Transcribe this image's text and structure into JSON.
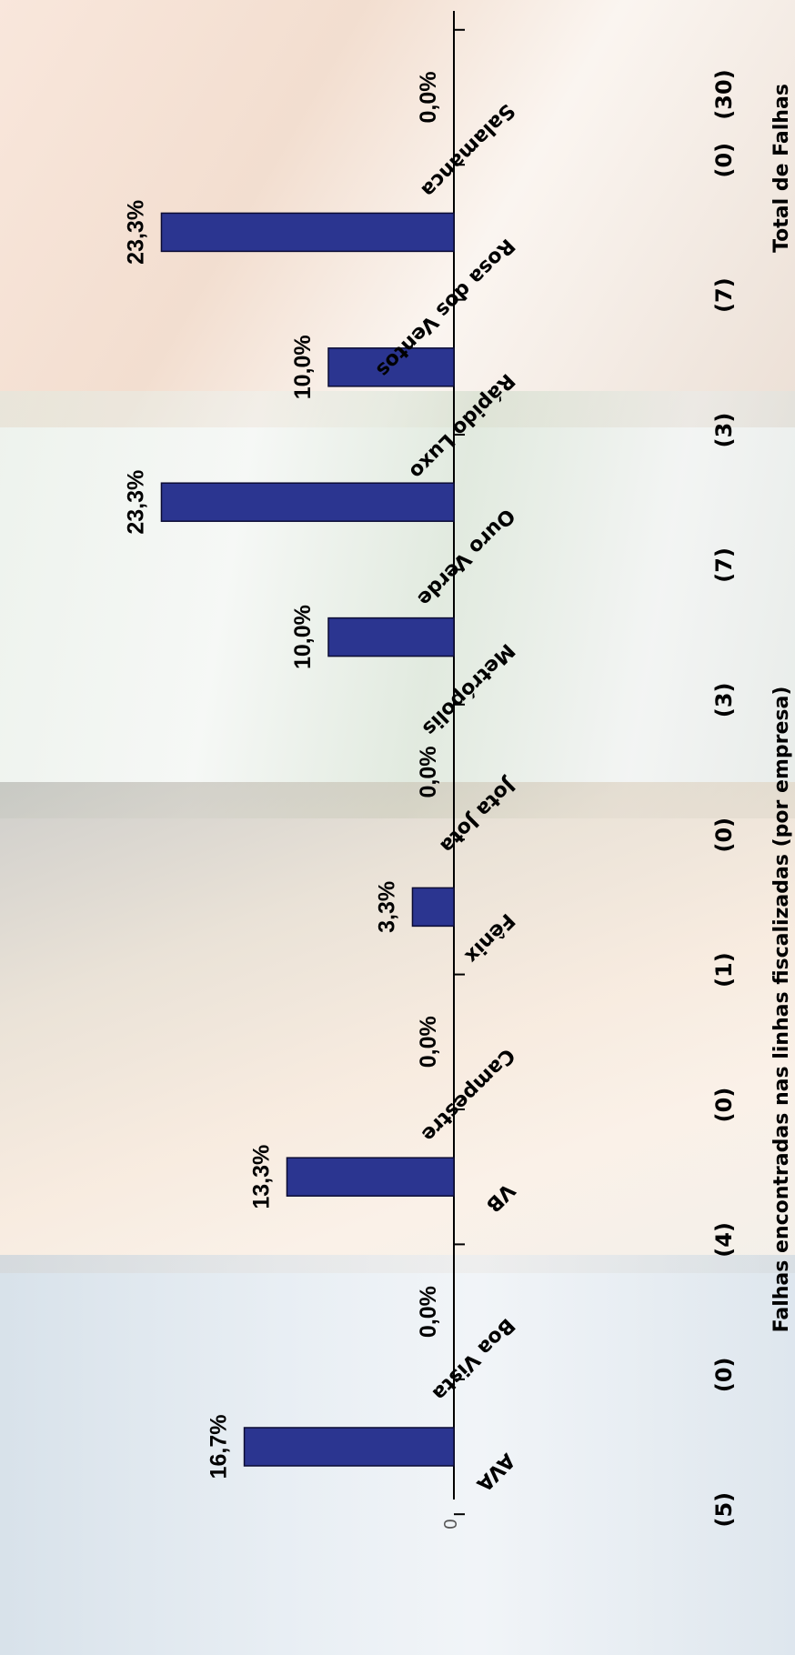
{
  "chart_data": {
    "type": "bar",
    "orientation": "horizontal",
    "title": "Falhas encontradas nas linhas fiscalizadas (por empresa)",
    "categories": [
      "AVA",
      "Boa Vista",
      "VB",
      "Campestre",
      "Fênix",
      "Jota Jota",
      "Metrópolis",
      "Ouro Verde",
      "Rápido Luxo",
      "Rosa dos Ventos",
      "Salamanca"
    ],
    "values": [
      16.7,
      0.0,
      13.3,
      0.0,
      3.3,
      0.0,
      10.0,
      23.3,
      10.0,
      23.3,
      0.0
    ],
    "value_labels": [
      "16,7%",
      "0,0%",
      "13,3%",
      "0,0%",
      "3,3%",
      "0,0%",
      "10,0%",
      "23,3%",
      "10,0%",
      "23,3%",
      "0,0%"
    ],
    "counts": [
      "(5)",
      "(0)",
      "(4)",
      "(0)",
      "(1)",
      "(0)",
      "(3)",
      "(7)",
      "(3)",
      "(7)",
      "(0)"
    ],
    "total_label": "Total de Falhas",
    "total_value": "(30)",
    "zero_label": "0",
    "xlim": [
      0,
      25
    ],
    "bar_color": "#2b3590",
    "grid": false
  }
}
